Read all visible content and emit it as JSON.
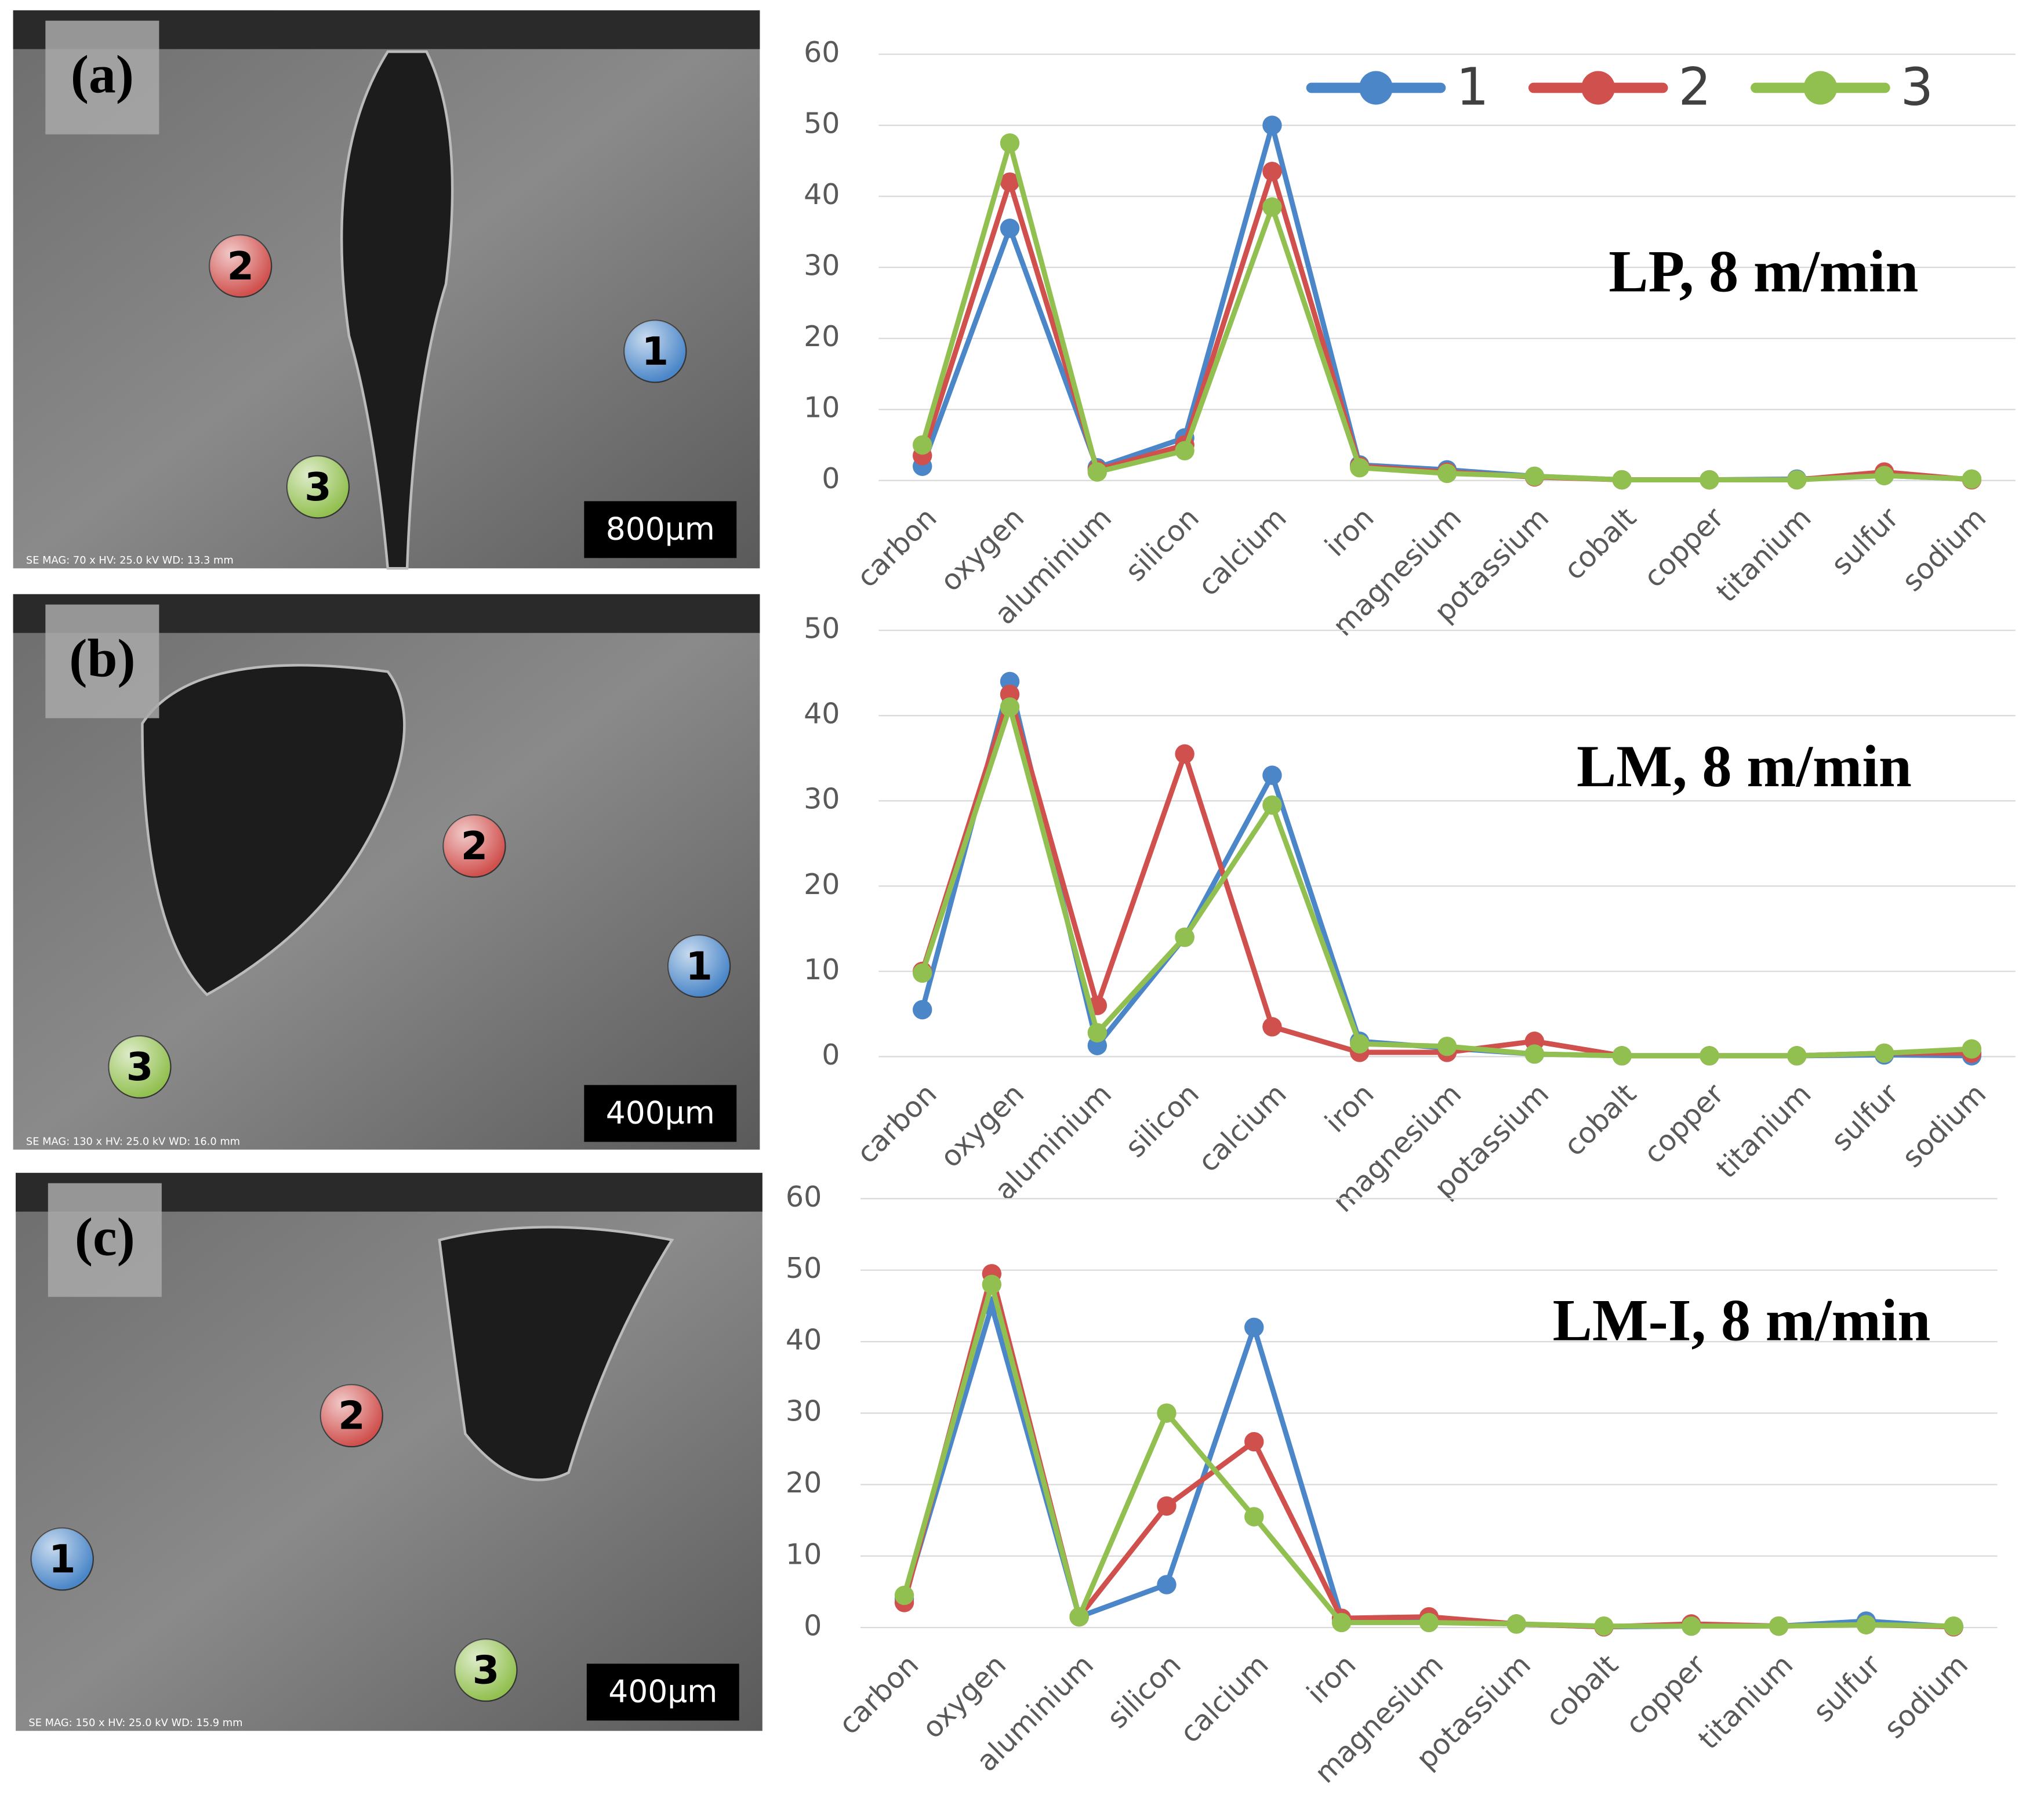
{
  "images": [
    {
      "label": "(a)",
      "scale_bar": "800μm",
      "info": "SE MAG: 70 x HV: 25.0 kV WD: 13.3 mm",
      "markers": [
        "1",
        "2",
        "3"
      ]
    },
    {
      "label": "(b)",
      "scale_bar": "400μm",
      "info": "SE MAG: 130 x HV: 25.0 kV WD: 16.0 mm",
      "markers": [
        "1",
        "2",
        "3"
      ]
    },
    {
      "label": "(c)",
      "scale_bar": "400μm",
      "info": "SE MAG: 150 x HV: 25.0 kV WD: 15.9 mm",
      "markers": [
        "1",
        "2",
        "3"
      ]
    }
  ],
  "chart_data": [
    {
      "type": "line",
      "title": "LP, 8 m/min",
      "categories": [
        "carbon",
        "oxygen",
        "aluminium",
        "silicon",
        "calcium",
        "iron",
        "magnesium",
        "potassium",
        "cobalt",
        "copper",
        "titanium",
        "sulfur",
        "sodium"
      ],
      "series": [
        {
          "name": "1",
          "color": "#4a86c8",
          "values": [
            2,
            35.5,
            1.8,
            6,
            50,
            2.2,
            1.5,
            0.6,
            0.1,
            0.1,
            0.2,
            0.7,
            0.2
          ]
        },
        {
          "name": "2",
          "color": "#d0504d",
          "values": [
            3.5,
            42,
            1.5,
            5,
            43.5,
            2,
            1.2,
            0.5,
            0.1,
            0.1,
            0.1,
            1.2,
            0.1
          ]
        },
        {
          "name": "3",
          "color": "#92c050",
          "values": [
            5,
            47.5,
            1.2,
            4.2,
            38.5,
            1.8,
            1,
            0.6,
            0.1,
            0.1,
            0.1,
            0.7,
            0.2
          ]
        }
      ],
      "ylim": [
        0,
        60
      ],
      "yticks": [
        0,
        10,
        20,
        30,
        40,
        50,
        60
      ],
      "grid": true,
      "legend": "top-right"
    },
    {
      "type": "line",
      "title": "LM, 8 m/min",
      "categories": [
        "carbon",
        "oxygen",
        "aluminium",
        "silicon",
        "calcium",
        "iron",
        "magnesium",
        "potassium",
        "cobalt",
        "copper",
        "titanium",
        "sulfur",
        "sodium"
      ],
      "series": [
        {
          "color": "#4a86c8",
          "values": [
            5.5,
            44,
            1.3,
            14,
            33,
            1.8,
            1,
            0.3,
            0.1,
            0.1,
            0.1,
            0.2,
            0.1
          ]
        },
        {
          "color": "#d0504d",
          "values": [
            10,
            42.5,
            6,
            35.5,
            3.5,
            0.5,
            0.5,
            1.8,
            0.1,
            0.1,
            0.1,
            0.4,
            0.4
          ]
        },
        {
          "color": "#92c050",
          "values": [
            9.8,
            41,
            2.8,
            14,
            29.5,
            1.5,
            1.2,
            0.3,
            0.1,
            0.1,
            0.1,
            0.4,
            0.9
          ]
        }
      ],
      "ylim": [
        0,
        50
      ],
      "yticks": [
        0,
        10,
        20,
        30,
        40,
        50
      ],
      "grid": true
    },
    {
      "type": "line",
      "title": "LM-I, 8 m/min",
      "categories": [
        "carbon",
        "oxygen",
        "aluminium",
        "silicon",
        "calcium",
        "iron",
        "magnesium",
        "potassium",
        "cobalt",
        "copper",
        "titanium",
        "sulfur",
        "sodium"
      ],
      "series": [
        {
          "color": "#4a86c8",
          "values": [
            4,
            45,
            1.5,
            6,
            42,
            1.3,
            1,
            0.5,
            0.1,
            0.2,
            0.2,
            0.9,
            0.1
          ]
        },
        {
          "color": "#d0504d",
          "values": [
            3.5,
            49.5,
            1.5,
            17,
            26,
            1.3,
            1.5,
            0.5,
            0.1,
            0.5,
            0.2,
            0.4,
            0.1
          ]
        },
        {
          "color": "#92c050",
          "values": [
            4.5,
            48,
            1.5,
            30,
            15.5,
            0.7,
            0.7,
            0.5,
            0.2,
            0.2,
            0.2,
            0.4,
            0.2
          ]
        }
      ],
      "ylim": [
        0,
        60
      ],
      "yticks": [
        0,
        10,
        20,
        30,
        40,
        50,
        60
      ],
      "grid": true
    }
  ]
}
